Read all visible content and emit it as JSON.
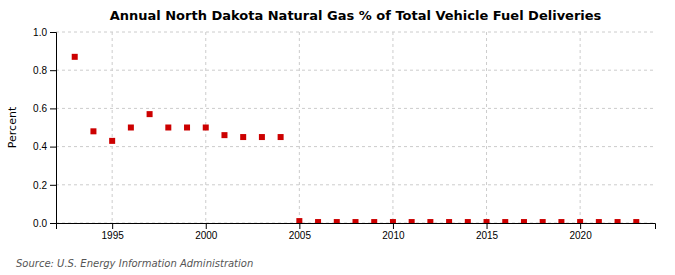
{
  "chart_data": {
    "type": "scatter",
    "title": "Annual North Dakota Natural Gas % of Total Vehicle Fuel Deliveries",
    "ylabel": "Percent",
    "annotations": [
      "Source: U.S. Energy Information Administration"
    ],
    "x": [
      1993,
      1994,
      1995,
      1996,
      1997,
      1998,
      1999,
      2000,
      2001,
      2002,
      2003,
      2004,
      2005,
      2006,
      2007,
      2008,
      2009,
      2010,
      2011,
      2012,
      2013,
      2014,
      2015,
      2016,
      2017,
      2018,
      2019,
      2020,
      2021,
      2022,
      2023
    ],
    "values": [
      0.87,
      0.48,
      0.43,
      0.5,
      0.57,
      0.5,
      0.5,
      0.5,
      0.46,
      0.45,
      0.45,
      0.45,
      0.01,
      0.005,
      0.005,
      0.005,
      0.005,
      0.005,
      0.005,
      0.005,
      0.005,
      0.005,
      0.005,
      0.005,
      0.005,
      0.005,
      0.005,
      0.005,
      0.005,
      0.005,
      0.005
    ],
    "color": "#cc0000",
    "marker": "square",
    "xlim": [
      1992,
      2024
    ],
    "ylim": [
      0.0,
      1.0
    ],
    "xticks": [
      1995,
      2000,
      2005,
      2010,
      2015,
      2020
    ],
    "yticks": [
      {
        "value": 0.0,
        "label": "0.0"
      },
      0.2,
      0.4,
      0.6,
      0.8,
      {
        "value": 1.0,
        "label": "1.0"
      }
    ],
    "grid": true
  }
}
